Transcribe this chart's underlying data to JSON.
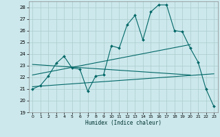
{
  "xlabel": "Humidex (Indice chaleur)",
  "ylabel": "",
  "xlim": [
    -0.5,
    23.5
  ],
  "ylim": [
    19,
    28.5
  ],
  "yticks": [
    19,
    20,
    21,
    22,
    23,
    24,
    25,
    26,
    27,
    28
  ],
  "xticks": [
    0,
    1,
    2,
    3,
    4,
    5,
    6,
    7,
    8,
    9,
    10,
    11,
    12,
    13,
    14,
    15,
    16,
    17,
    18,
    19,
    20,
    21,
    22,
    23
  ],
  "bg_color": "#cce8ec",
  "grid_color": "#aacccc",
  "line_color": "#006666",
  "main_line": {
    "x": [
      0,
      1,
      2,
      3,
      4,
      5,
      6,
      7,
      8,
      9,
      10,
      11,
      12,
      13,
      14,
      15,
      16,
      17,
      18,
      19,
      20,
      21,
      22,
      23
    ],
    "y": [
      21.0,
      21.3,
      22.1,
      23.2,
      23.8,
      22.8,
      22.7,
      20.8,
      22.1,
      22.2,
      24.7,
      24.5,
      26.5,
      27.3,
      25.2,
      27.6,
      28.2,
      28.2,
      26.0,
      25.9,
      24.5,
      23.3,
      21.0,
      19.5
    ]
  },
  "straight_lines": [
    {
      "x": [
        0,
        23
      ],
      "y": [
        21.2,
        22.3
      ]
    },
    {
      "x": [
        0,
        20
      ],
      "y": [
        22.2,
        24.8
      ]
    },
    {
      "x": [
        0,
        20
      ],
      "y": [
        23.1,
        22.2
      ]
    }
  ]
}
